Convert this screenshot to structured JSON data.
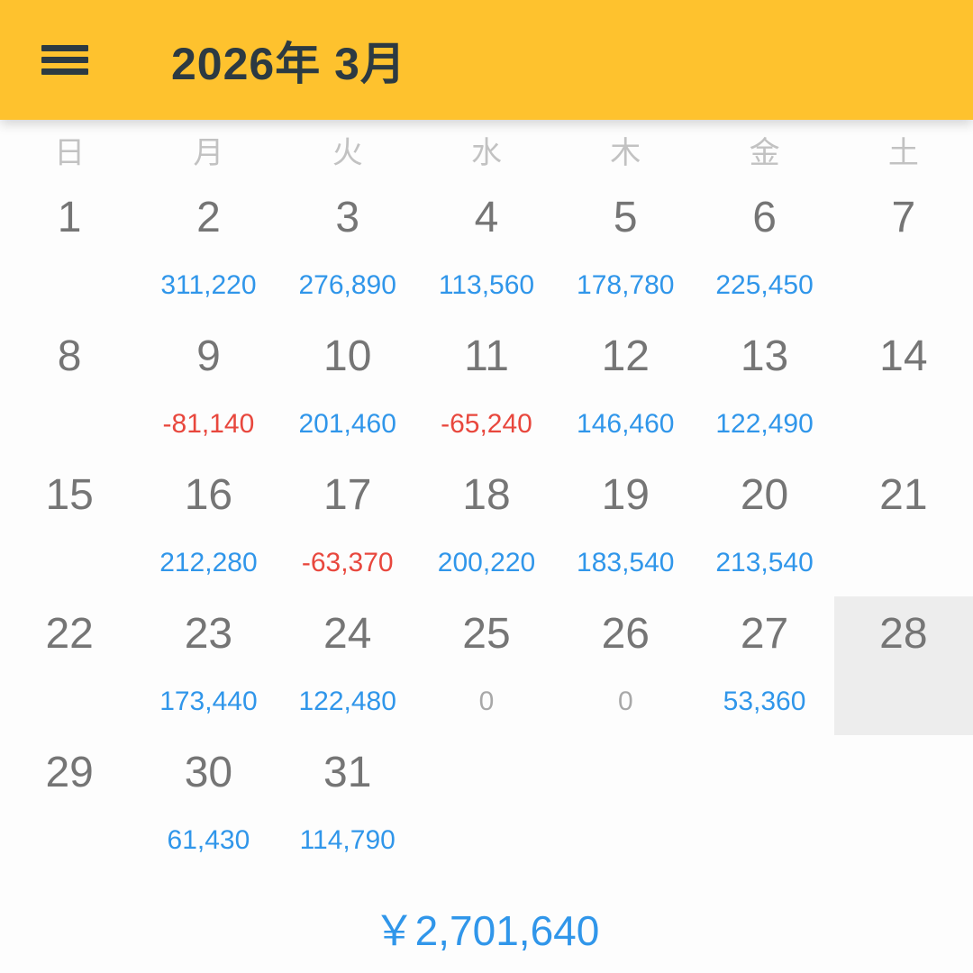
{
  "header": {
    "title": "2026年 3月",
    "menu_icon": "hamburger-menu"
  },
  "weekday_headers": [
    "日",
    "月",
    "火",
    "水",
    "木",
    "金",
    "土"
  ],
  "weeks": [
    [
      {
        "day": "1"
      },
      {
        "day": "2",
        "value": "311,220",
        "value_type": "income"
      },
      {
        "day": "3",
        "value": "276,890",
        "value_type": "income"
      },
      {
        "day": "4",
        "value": "113,560",
        "value_type": "income"
      },
      {
        "day": "5",
        "value": "178,780",
        "value_type": "income"
      },
      {
        "day": "6",
        "value": "225,450",
        "value_type": "income"
      },
      {
        "day": "7"
      }
    ],
    [
      {
        "day": "8"
      },
      {
        "day": "9",
        "value": "-81,140",
        "value_type": "expense"
      },
      {
        "day": "10",
        "value": "201,460",
        "value_type": "income"
      },
      {
        "day": "11",
        "value": "-65,240",
        "value_type": "expense"
      },
      {
        "day": "12",
        "value": "146,460",
        "value_type": "income"
      },
      {
        "day": "13",
        "value": "122,490",
        "value_type": "income"
      },
      {
        "day": "14"
      }
    ],
    [
      {
        "day": "15"
      },
      {
        "day": "16",
        "value": "212,280",
        "value_type": "income"
      },
      {
        "day": "17",
        "value": "-63,370",
        "value_type": "expense"
      },
      {
        "day": "18",
        "value": "200,220",
        "value_type": "income"
      },
      {
        "day": "19",
        "value": "183,540",
        "value_type": "income"
      },
      {
        "day": "20",
        "value": "213,540",
        "value_type": "income"
      },
      {
        "day": "21"
      }
    ],
    [
      {
        "day": "22"
      },
      {
        "day": "23",
        "value": "173,440",
        "value_type": "income"
      },
      {
        "day": "24",
        "value": "122,480",
        "value_type": "income"
      },
      {
        "day": "25",
        "value": "0",
        "value_type": "zero"
      },
      {
        "day": "26",
        "value": "0",
        "value_type": "zero"
      },
      {
        "day": "27",
        "value": "53,360",
        "value_type": "income"
      },
      {
        "day": "28",
        "selected": true
      }
    ],
    [
      {
        "day": "29"
      },
      {
        "day": "30",
        "value": "61,430",
        "value_type": "income"
      },
      {
        "day": "31",
        "value": "114,790",
        "value_type": "income"
      },
      {},
      {},
      {},
      {}
    ]
  ],
  "summary": {
    "total": "￥2,701,640"
  },
  "colors": {
    "header_bg": "#FEC22E",
    "header_text": "#2C3A42",
    "income": "#3096EA",
    "expense": "#E8473D",
    "zero": "#A8A8A8",
    "selected_bg": "#EDEDED"
  }
}
